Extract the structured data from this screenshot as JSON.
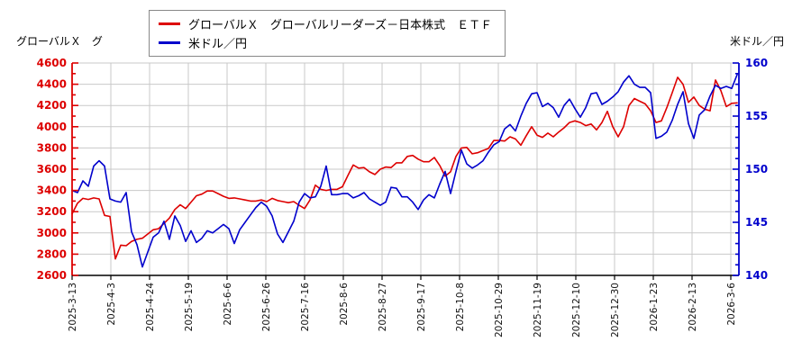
{
  "titles": {
    "left": "グローバルＸ　グ",
    "right": "米ドル／円"
  },
  "legend": {
    "items": [
      {
        "label": "グローバルＸ　グローバルリーダーズ－日本株式　ＥＴＦ",
        "color": "#dd0000"
      },
      {
        "label": "米ドル／円",
        "color": "#0000cc"
      }
    ]
  },
  "chart_data": {
    "type": "line",
    "grid": true,
    "background": "#ffffff",
    "gridline_color": "#c9c9c9",
    "x_tick_labels": [
      "2025-3-13",
      "2025-4-3",
      "2025-4-24",
      "2025-5-19",
      "2025-6-6",
      "2025-6-26",
      "2025-7-16",
      "2025-8-6",
      "2025-8-27",
      "2025-9-17",
      "2025-10-8",
      "2025-10-29",
      "2025-11-19",
      "2025-12-10",
      "2025-12-30",
      "2026-1-23",
      "2026-2-13",
      "2026-3-6"
    ],
    "left_axis": {
      "title": "グローバルＸ　グ",
      "min": 2600,
      "max": 4600,
      "major_step": 200,
      "minor_step": 100,
      "color": "#dd0000",
      "labels": [
        "4600",
        "4400",
        "4200",
        "4000",
        "3800",
        "3600",
        "3400",
        "3200",
        "3000",
        "2800",
        "2600"
      ]
    },
    "right_axis": {
      "title": "米ドル／円",
      "min": 140,
      "max": 160,
      "major_step": 5,
      "minor_step": 1,
      "color": "#0000cc",
      "labels": [
        "160",
        "155",
        "150",
        "145",
        "140"
      ]
    },
    "series": [
      {
        "name": "グローバルＸ　グローバルリーダーズ－日本株式　ＥＴＦ",
        "axis": "left",
        "color": "#dd0000",
        "values": [
          3180,
          3280,
          3325,
          3315,
          3330,
          3320,
          3165,
          3155,
          2755,
          2885,
          2880,
          2920,
          2940,
          2950,
          2990,
          3030,
          3040,
          3090,
          3140,
          3220,
          3265,
          3230,
          3290,
          3350,
          3365,
          3395,
          3395,
          3370,
          3345,
          3325,
          3330,
          3320,
          3310,
          3300,
          3300,
          3310,
          3295,
          3325,
          3305,
          3295,
          3285,
          3295,
          3260,
          3230,
          3310,
          3450,
          3410,
          3400,
          3410,
          3410,
          3435,
          3540,
          3640,
          3610,
          3615,
          3575,
          3550,
          3600,
          3620,
          3615,
          3660,
          3660,
          3720,
          3730,
          3695,
          3670,
          3670,
          3710,
          3635,
          3535,
          3575,
          3720,
          3800,
          3805,
          3745,
          3755,
          3775,
          3795,
          3870,
          3870,
          3865,
          3905,
          3885,
          3825,
          3915,
          4000,
          3920,
          3900,
          3940,
          3905,
          3950,
          3990,
          4040,
          4055,
          4040,
          4010,
          4025,
          3970,
          4040,
          4145,
          4000,
          3905,
          4000,
          4200,
          4265,
          4240,
          4215,
          4150,
          4040,
          4055,
          4180,
          4320,
          4465,
          4400,
          4230,
          4280,
          4200,
          4165,
          4150,
          4440,
          4340,
          4190,
          4220,
          4225
        ]
      },
      {
        "name": "米ドル／円",
        "axis": "right",
        "color": "#0000cc",
        "values": [
          148.0,
          147.8,
          148.9,
          148.4,
          150.3,
          150.8,
          150.3,
          147.2,
          147.0,
          146.9,
          147.8,
          144.1,
          142.9,
          140.8,
          142.2,
          143.6,
          144.0,
          145.1,
          143.4,
          145.6,
          144.7,
          143.2,
          144.2,
          143.1,
          143.5,
          144.2,
          144.0,
          144.4,
          144.8,
          144.4,
          143.0,
          144.3,
          145.0,
          145.7,
          146.4,
          146.9,
          146.5,
          145.6,
          143.9,
          143.1,
          144.1,
          145.1,
          146.9,
          147.7,
          147.3,
          147.4,
          148.4,
          150.3,
          147.6,
          147.6,
          147.7,
          147.7,
          147.3,
          147.5,
          147.8,
          147.2,
          146.9,
          146.6,
          146.9,
          148.3,
          148.2,
          147.4,
          147.4,
          146.9,
          146.2,
          147.1,
          147.6,
          147.3,
          148.6,
          149.8,
          147.7,
          149.8,
          151.8,
          150.5,
          150.1,
          150.4,
          150.8,
          151.6,
          152.3,
          152.6,
          153.8,
          154.2,
          153.6,
          155.0,
          156.2,
          157.1,
          157.2,
          155.9,
          156.2,
          155.8,
          154.9,
          156.0,
          156.6,
          155.7,
          154.9,
          155.8,
          157.1,
          157.2,
          156.1,
          156.4,
          156.8,
          157.3,
          158.2,
          158.8,
          158.0,
          157.7,
          157.7,
          157.2,
          152.9,
          153.1,
          153.5,
          154.6,
          156.1,
          157.3,
          154.3,
          152.9,
          155.1,
          155.6,
          156.9,
          157.9,
          157.6,
          157.8,
          157.6,
          158.9
        ]
      }
    ]
  }
}
